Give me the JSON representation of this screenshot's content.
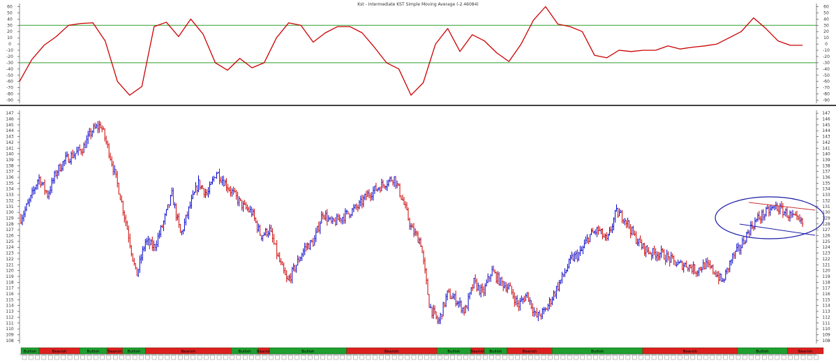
{
  "chart_data": [
    {
      "type": "line",
      "title": "Kst - Intermediate KST Simple Moving Average (-2.46084)",
      "ylim": [
        -95,
        65
      ],
      "y_ticks": [
        60,
        50,
        40,
        30,
        20,
        10,
        0,
        -10,
        -20,
        -30,
        -40,
        -50,
        -60,
        -70,
        -80,
        -90
      ],
      "reference_lines": [
        30,
        -30
      ],
      "colors": {
        "line": "#cc0000",
        "reference": "#2e9e2e"
      },
      "grid": false,
      "series": [
        {
          "values": [
            -60,
            -25,
            -2,
            12,
            30,
            33,
            34,
            5,
            -60,
            -82,
            -68,
            28,
            35,
            12,
            40,
            16,
            -30,
            -42,
            -23,
            -38,
            -30,
            10,
            34,
            30,
            3,
            18,
            28,
            28,
            18,
            -5,
            -30,
            -40,
            -82,
            -62,
            0,
            25,
            -12,
            15,
            5,
            -14,
            -28,
            0,
            38,
            60,
            32,
            28,
            20,
            -18,
            -22,
            -10,
            -12,
            -10,
            -10,
            -3,
            -8,
            -5,
            -3,
            0,
            10,
            20,
            42,
            25,
            5,
            -2,
            -2
          ]
        }
      ]
    },
    {
      "type": "ohlc",
      "ylim": [
        107.5,
        147.5
      ],
      "y_ticks": [
        147,
        146,
        145,
        144,
        143,
        142,
        141,
        140,
        139,
        138,
        137,
        136,
        135,
        134,
        133,
        132,
        131,
        130,
        129,
        128,
        127,
        126,
        125,
        124,
        123,
        122,
        121,
        120,
        119,
        118,
        117,
        116,
        115,
        114,
        113,
        112,
        111,
        110,
        109,
        108
      ],
      "colors": {
        "up": "#0000cc",
        "down": "#cc0000",
        "ellipse": "#1a1aa6"
      },
      "grid": false,
      "annotation": "channel ellipse around recent consolidation",
      "series": [
        {
          "name": "price_path",
          "values": [
            129,
            132,
            136,
            133,
            137,
            139,
            140,
            141,
            144,
            145,
            140,
            134,
            127,
            119,
            125,
            124,
            128,
            133,
            126,
            131,
            135,
            133,
            137,
            135,
            133,
            131,
            130,
            126,
            127,
            122,
            118,
            121,
            124,
            125,
            130,
            128,
            129,
            130,
            131,
            133,
            134,
            135,
            136,
            132,
            127,
            125,
            114,
            111,
            116,
            115,
            113,
            118,
            116,
            120,
            118,
            117,
            114,
            116,
            112,
            113,
            116,
            119,
            122,
            123,
            126,
            127,
            125,
            130,
            129,
            126,
            124,
            123,
            123,
            122,
            121,
            121,
            120,
            121,
            120,
            118,
            122,
            124,
            127,
            129,
            130,
            131,
            130,
            129,
            128
          ]
        }
      ]
    }
  ],
  "bottom_strip": {
    "labels": {
      "bullish": "Bullish",
      "bearish": "Bearish"
    },
    "colors": {
      "bullish": "#1e9e2e",
      "bearish": "#dd1f1f"
    },
    "segments": [
      [
        "bullish",
        8
      ],
      [
        "bearish",
        18
      ],
      [
        "bullish",
        12
      ],
      [
        "bearish",
        7
      ],
      [
        "bullish",
        10
      ],
      [
        "bearish",
        38
      ],
      [
        "bullish",
        12
      ],
      [
        "bearish",
        5
      ],
      [
        "bullish",
        34
      ],
      [
        "bearish",
        40
      ],
      [
        "bullish",
        15
      ],
      [
        "bearish",
        6
      ],
      [
        "bullish",
        10
      ],
      [
        "bearish",
        20
      ],
      [
        "bullish",
        40
      ],
      [
        "bearish",
        42
      ],
      [
        "bullish",
        22
      ],
      [
        "bearish",
        16
      ]
    ]
  }
}
